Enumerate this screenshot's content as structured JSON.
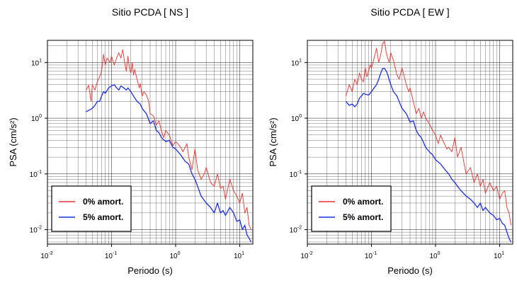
{
  "chart_data": [
    {
      "type": "line",
      "title": "Sitio PCDA [ NS ]",
      "xlabel": "Periodo (s)",
      "ylabel": "PSA (cm/s²)",
      "xscale": "log",
      "yscale": "log",
      "xlim": [
        0.01,
        16
      ],
      "ylim": [
        0.0055,
        25
      ],
      "grid": true,
      "legend_position": "bottom-left",
      "xticks": [
        0.01,
        0.1,
        1,
        10
      ],
      "yticks": [
        0.01,
        0.1,
        1,
        10
      ],
      "series": [
        {
          "name": "0% amort.",
          "color": "#e8312f",
          "x": [
            0.04,
            0.044,
            0.048,
            0.05,
            0.055,
            0.06,
            0.065,
            0.07,
            0.075,
            0.08,
            0.085,
            0.09,
            0.095,
            0.1,
            0.11,
            0.12,
            0.13,
            0.14,
            0.15,
            0.16,
            0.17,
            0.18,
            0.19,
            0.2,
            0.21,
            0.22,
            0.23,
            0.25,
            0.27,
            0.28,
            0.3,
            0.32,
            0.35,
            0.38,
            0.4,
            0.45,
            0.5,
            0.55,
            0.6,
            0.65,
            0.7,
            0.8,
            0.9,
            1.0,
            1.1,
            1.2,
            1.3,
            1.5,
            1.6,
            1.8,
            2.0,
            2.2,
            2.5,
            2.8,
            3.0,
            3.5,
            4.0,
            4.5,
            5.0,
            5.5,
            6.0,
            7.0,
            8.0,
            9.0,
            10.0,
            11.0,
            12.0,
            13.0,
            14.0,
            15.0
          ],
          "y": [
            3.2,
            3.9,
            2.0,
            4.0,
            3.2,
            4.5,
            5.5,
            7.0,
            14.0,
            9.0,
            12.0,
            11.0,
            10.0,
            13.0,
            9.0,
            12.0,
            15.0,
            12.0,
            17.0,
            10.0,
            7.0,
            13.0,
            8.0,
            6.5,
            10.0,
            6.0,
            7.5,
            5.0,
            3.5,
            4.2,
            2.5,
            3.0,
            2.6,
            2.0,
            1.2,
            1.1,
            0.75,
            0.9,
            0.6,
            0.45,
            0.6,
            0.5,
            0.32,
            0.38,
            0.34,
            0.3,
            0.25,
            0.35,
            0.2,
            0.12,
            0.28,
            0.12,
            0.08,
            0.1,
            0.13,
            0.07,
            0.06,
            0.1,
            0.055,
            0.06,
            0.035,
            0.08,
            0.05,
            0.04,
            0.03,
            0.045,
            0.02,
            0.025,
            0.012,
            0.01
          ]
        },
        {
          "name": "5% amort.",
          "color": "#1f2ee0",
          "x": [
            0.04,
            0.045,
            0.05,
            0.055,
            0.06,
            0.065,
            0.07,
            0.075,
            0.08,
            0.09,
            0.1,
            0.11,
            0.12,
            0.13,
            0.14,
            0.15,
            0.16,
            0.17,
            0.18,
            0.2,
            0.22,
            0.25,
            0.28,
            0.3,
            0.35,
            0.4,
            0.45,
            0.5,
            0.55,
            0.6,
            0.7,
            0.8,
            0.9,
            1.0,
            1.2,
            1.4,
            1.6,
            1.8,
            2.0,
            2.2,
            2.5,
            3.0,
            3.5,
            4.0,
            4.5,
            5.0,
            5.5,
            6.0,
            7.0,
            8.0,
            9.0,
            10.0,
            11.0,
            12.0,
            13.0,
            14.0,
            15.0
          ],
          "y": [
            1.3,
            1.4,
            1.5,
            1.7,
            2.0,
            2.0,
            2.5,
            3.0,
            2.8,
            3.5,
            3.8,
            4.0,
            3.5,
            3.2,
            3.8,
            3.6,
            3.4,
            3.2,
            3.5,
            3.0,
            2.5,
            2.0,
            1.8,
            1.5,
            1.2,
            0.8,
            0.9,
            0.6,
            0.55,
            0.45,
            0.38,
            0.4,
            0.3,
            0.28,
            0.22,
            0.17,
            0.15,
            0.1,
            0.08,
            0.06,
            0.04,
            0.03,
            0.025,
            0.02,
            0.03,
            0.02,
            0.022,
            0.018,
            0.025,
            0.02,
            0.014,
            0.015,
            0.01,
            0.012,
            0.008,
            0.007,
            0.006
          ]
        }
      ]
    },
    {
      "type": "line",
      "title": "Sitio PCDA [ EW ]",
      "xlabel": "Periodo (s)",
      "ylabel": "PSA (cm/s²)",
      "xscale": "log",
      "yscale": "log",
      "xlim": [
        0.01,
        16
      ],
      "ylim": [
        0.0055,
        25
      ],
      "grid": true,
      "legend_position": "bottom-left",
      "xticks": [
        0.01,
        0.1,
        1,
        10
      ],
      "yticks": [
        0.01,
        0.1,
        1,
        10
      ],
      "series": [
        {
          "name": "0% amort.",
          "color": "#e8312f",
          "x": [
            0.04,
            0.045,
            0.05,
            0.055,
            0.06,
            0.065,
            0.07,
            0.075,
            0.08,
            0.085,
            0.09,
            0.095,
            0.1,
            0.11,
            0.12,
            0.13,
            0.14,
            0.15,
            0.16,
            0.17,
            0.18,
            0.19,
            0.2,
            0.22,
            0.25,
            0.27,
            0.3,
            0.32,
            0.35,
            0.38,
            0.4,
            0.45,
            0.5,
            0.55,
            0.6,
            0.65,
            0.7,
            0.8,
            0.9,
            1.0,
            1.1,
            1.2,
            1.3,
            1.5,
            1.6,
            1.8,
            2.0,
            2.2,
            2.5,
            2.8,
            3.0,
            3.5,
            4.0,
            4.5,
            5.0,
            5.5,
            6.0,
            7.0,
            8.0,
            9.0,
            10.0,
            11.0,
            12.0,
            13.0,
            14.0,
            15.0
          ],
          "y": [
            2.5,
            4.0,
            3.0,
            5.0,
            4.0,
            6.5,
            5.0,
            4.5,
            8.0,
            5.5,
            7.0,
            9.0,
            8.0,
            12.0,
            18.0,
            10.0,
            14.0,
            22.0,
            24.0,
            15.0,
            12.0,
            10.0,
            15.0,
            11.0,
            6.0,
            5.0,
            8.0,
            6.0,
            4.0,
            3.0,
            3.5,
            2.0,
            1.2,
            1.5,
            1.0,
            1.3,
            1.0,
            0.8,
            0.6,
            0.5,
            0.35,
            0.5,
            0.4,
            0.28,
            0.3,
            0.25,
            0.45,
            0.2,
            0.3,
            0.15,
            0.1,
            0.13,
            0.07,
            0.1,
            0.06,
            0.08,
            0.045,
            0.07,
            0.05,
            0.06,
            0.035,
            0.045,
            0.05,
            0.025,
            0.02,
            0.012
          ]
        },
        {
          "name": "5% amort.",
          "color": "#1f2ee0",
          "x": [
            0.04,
            0.045,
            0.05,
            0.055,
            0.06,
            0.065,
            0.07,
            0.075,
            0.08,
            0.09,
            0.1,
            0.11,
            0.12,
            0.13,
            0.14,
            0.15,
            0.16,
            0.17,
            0.18,
            0.19,
            0.2,
            0.22,
            0.25,
            0.28,
            0.3,
            0.35,
            0.4,
            0.45,
            0.5,
            0.55,
            0.6,
            0.7,
            0.8,
            0.9,
            1.0,
            1.2,
            1.4,
            1.6,
            1.8,
            2.0,
            2.2,
            2.5,
            3.0,
            3.5,
            4.0,
            4.5,
            5.0,
            5.5,
            6.0,
            7.0,
            8.0,
            9.0,
            10.0,
            11.0,
            12.0,
            13.0,
            14.0,
            15.0
          ],
          "y": [
            2.0,
            1.7,
            1.8,
            1.6,
            1.8,
            2.3,
            2.5,
            2.8,
            2.7,
            2.6,
            3.0,
            3.5,
            4.0,
            5.0,
            6.5,
            7.8,
            7.8,
            7.0,
            6.0,
            4.8,
            4.0,
            3.0,
            2.5,
            1.8,
            1.5,
            1.2,
            0.85,
            0.9,
            0.6,
            0.5,
            0.45,
            0.3,
            0.25,
            0.22,
            0.18,
            0.15,
            0.12,
            0.1,
            0.08,
            0.07,
            0.06,
            0.05,
            0.04,
            0.035,
            0.03,
            0.025,
            0.03,
            0.022,
            0.025,
            0.02,
            0.018,
            0.015,
            0.016,
            0.013,
            0.012,
            0.009,
            0.007,
            0.006
          ]
        }
      ]
    }
  ]
}
